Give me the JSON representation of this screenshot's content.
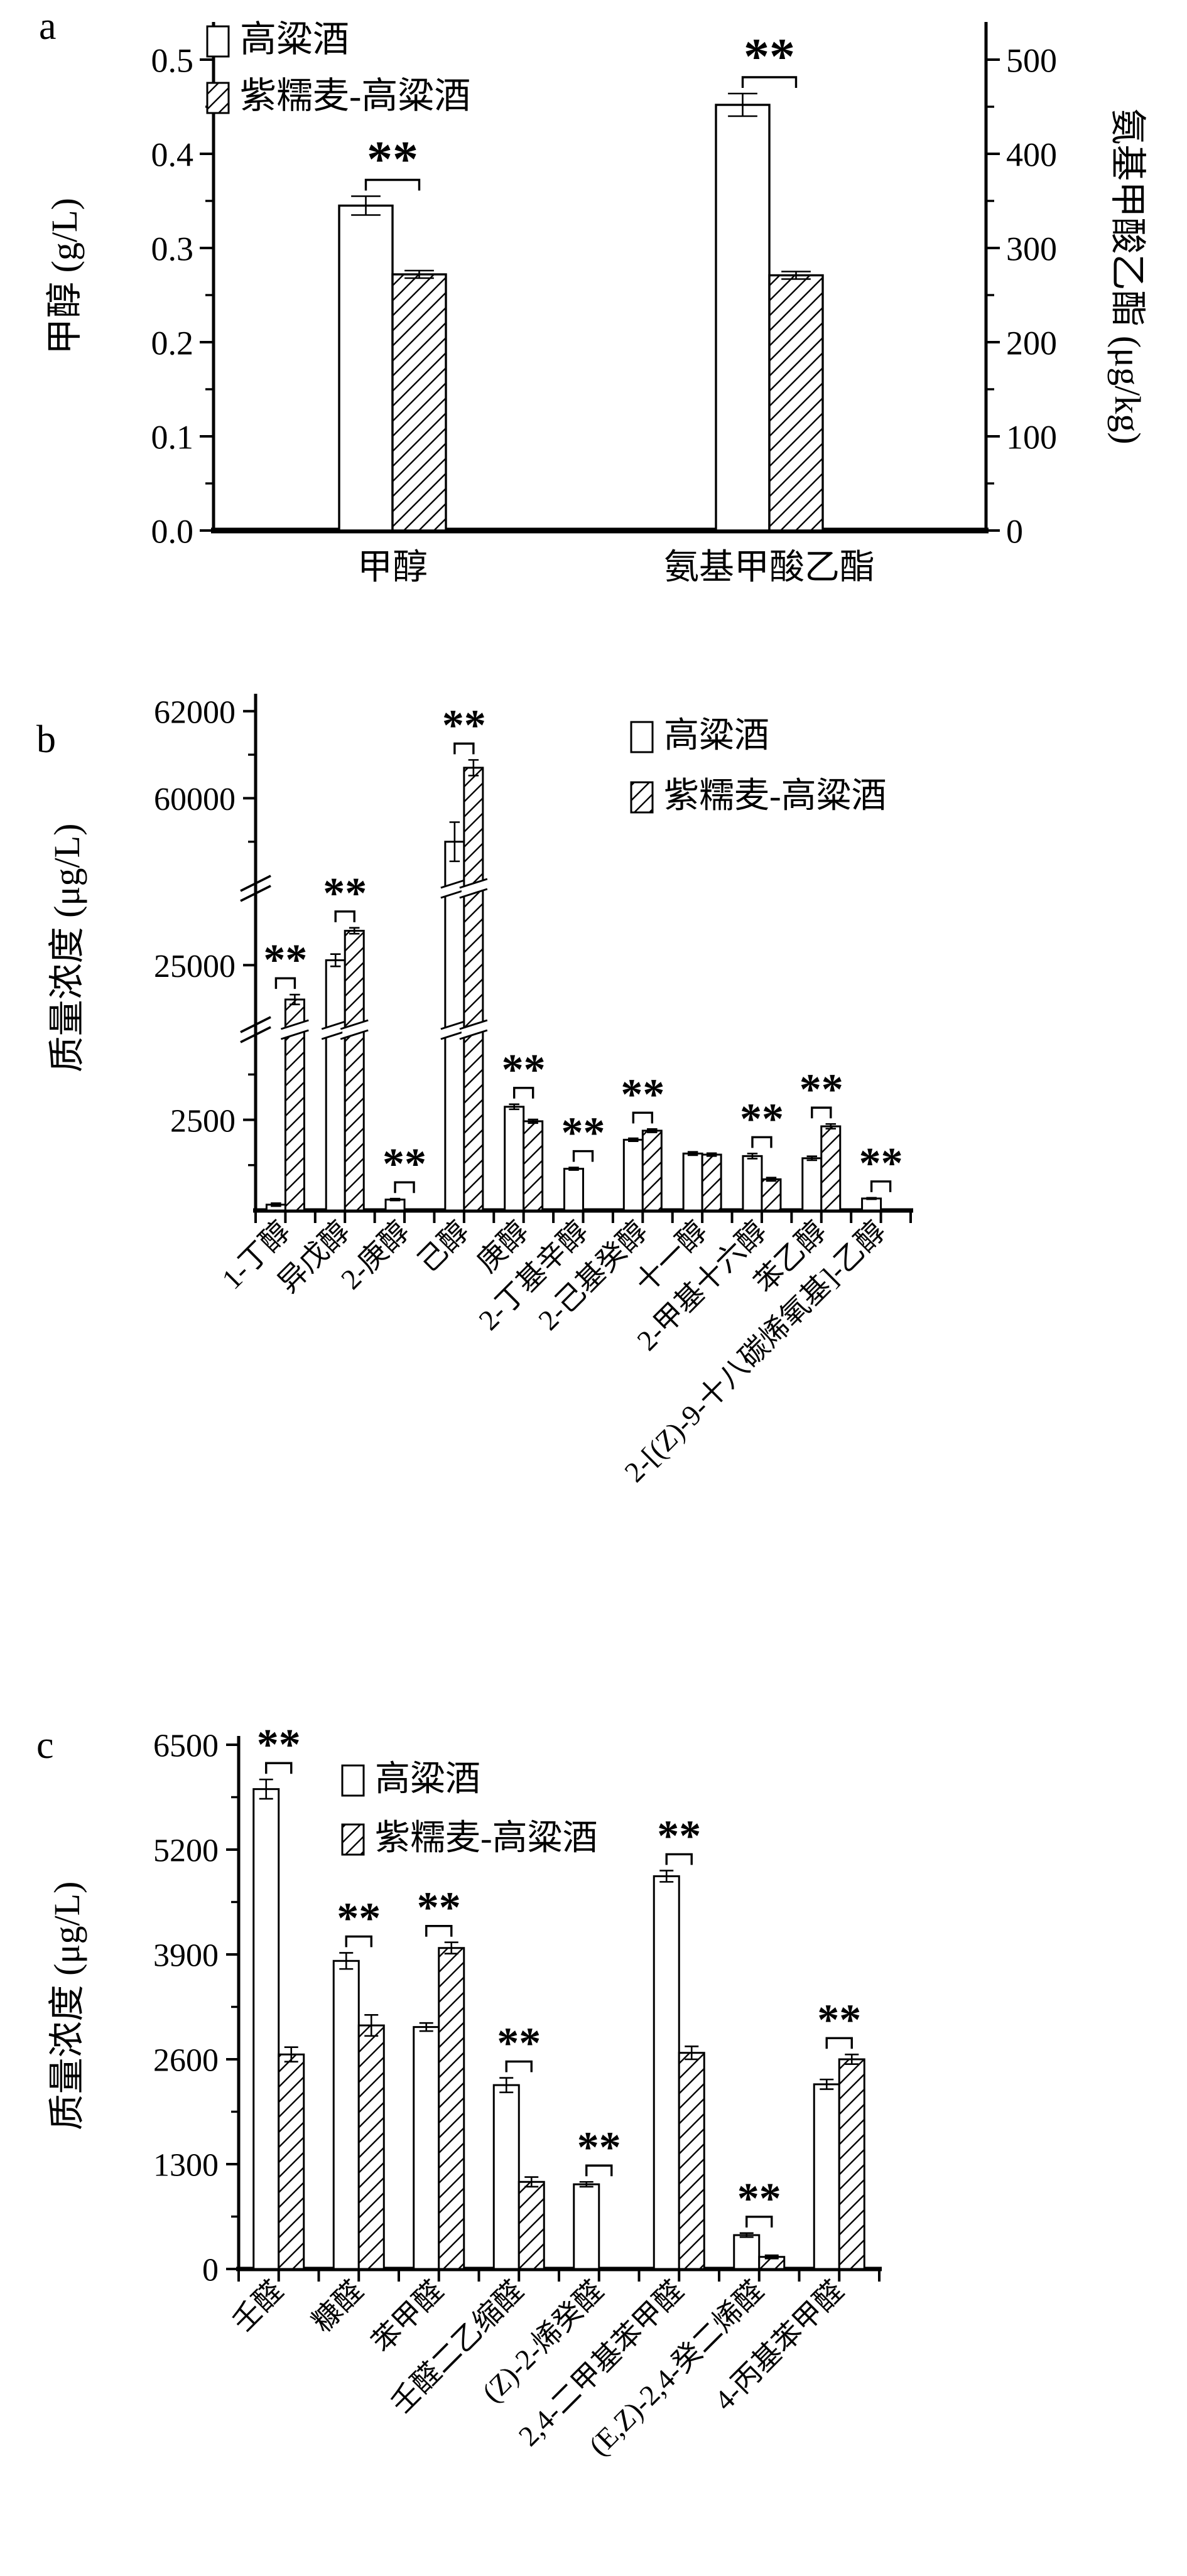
{
  "figure_type": "three-panel bar figure comparing two liquors",
  "legend_series": [
    "高粱酒",
    "紫糯麦-高粱酒"
  ],
  "chart_data": [
    {
      "panel": "a",
      "type": "bar",
      "title": "",
      "categories": [
        "甲醇",
        "氨基甲酸乙酯"
      ],
      "category_axis": [
        "left",
        "right"
      ],
      "series": [
        {
          "name": "高粱酒",
          "style": "open",
          "values": [
            0.345,
            452
          ],
          "errors": [
            0.01,
            12
          ]
        },
        {
          "name": "紫糯麦-高粱酒",
          "style": "hatched",
          "values": [
            0.272,
            271
          ],
          "errors": [
            0.004,
            4
          ]
        }
      ],
      "significance": [
        "**",
        "**"
      ],
      "ylabel_left": "甲醇 (g/L)",
      "ylabel_right": "氨基甲酸乙酯 (μg/kg)",
      "ylim_left": [
        0,
        0.5
      ],
      "ylim_right": [
        0,
        500
      ],
      "ytick_values_left": [
        0,
        0.1,
        0.2,
        0.3,
        0.4,
        0.5
      ],
      "ytick_labels_left": [
        "0.0",
        "0.1",
        "0.2",
        "0.3",
        "0.4",
        "0.5"
      ],
      "minor_ticks_left": [
        0.05,
        0.15,
        0.25,
        0.35,
        0.45
      ],
      "ytick_values_right": [
        0,
        100,
        200,
        300,
        400,
        500
      ],
      "ytick_labels_right": [
        "0",
        "100",
        "200",
        "300",
        "400",
        "500"
      ],
      "minor_ticks_right": [
        50,
        150,
        250,
        350,
        450
      ],
      "grid": false,
      "legend_position": "top-left-inside"
    },
    {
      "panel": "b",
      "type": "bar",
      "title": "",
      "categories": [
        "1-丁醇",
        "异戊醇",
        "2-庚醇",
        "己醇",
        "庚醇",
        "2-丁基辛醇",
        "2-己基癸醇",
        "十一醇",
        "2-甲基十六醇",
        "苯乙醇",
        "2-[(Z)-9-十八碳烯氧基]-乙醇"
      ],
      "series": [
        {
          "name": "高粱酒",
          "style": "open",
          "values": [
            160,
            25200,
            300,
            59000,
            2860,
            1150,
            1950,
            1570,
            1500,
            1440,
            330
          ],
          "errors": [
            40,
            250,
            25,
            450,
            70,
            35,
            40,
            45,
            70,
            55,
            20
          ]
        },
        {
          "name": "紫糯麦-高粱酒",
          "style": "hatched",
          "values": [
            23600,
            26400,
            0,
            60700,
            2460,
            0,
            2200,
            1540,
            860,
            2320,
            0
          ],
          "errors": [
            200,
            120,
            0,
            180,
            50,
            0,
            45,
            40,
            45,
            65,
            0
          ]
        }
      ],
      "significance": [
        "**",
        "**",
        "**",
        "**",
        "**",
        "**",
        "**",
        null,
        "**",
        "**",
        "**"
      ],
      "ylabel": "质量浓度 (μg/L)",
      "axis_broken": true,
      "segments": [
        {
          "range": [
            0,
            4900
          ],
          "ticks": [
            2500
          ],
          "tick_labels": [
            "2500"
          ],
          "minor": [
            1250,
            3750
          ]
        },
        {
          "range": [
            22500,
            28000
          ],
          "ticks": [
            25000
          ],
          "tick_labels": [
            "25000"
          ],
          "minor": []
        },
        {
          "range": [
            58000,
            62400
          ],
          "ticks": [
            60000,
            62000
          ],
          "tick_labels": [
            "60000",
            "62000"
          ],
          "minor": [
            59000,
            61000
          ]
        }
      ],
      "grid": false,
      "legend_position": "top-right-inside"
    },
    {
      "panel": "c",
      "type": "bar",
      "title": "",
      "categories": [
        "壬醛",
        "糠醛",
        "苯甲醛",
        "壬醛二乙缩醛",
        "(Z)-2-烯癸醛",
        "2,4-二甲基苯甲醛",
        "(E,Z)-2,4-癸二烯醛",
        "4-丙基苯甲醛"
      ],
      "series": [
        {
          "name": "高粱酒",
          "style": "open",
          "values": [
            5950,
            3820,
            3000,
            2280,
            1050,
            4870,
            420,
            2290
          ],
          "errors": [
            120,
            100,
            50,
            90,
            30,
            70,
            25,
            60
          ]
        },
        {
          "name": "紫糯麦-高粱酒",
          "style": "hatched",
          "values": [
            2660,
            3020,
            3980,
            1080,
            0,
            2680,
            150,
            2600
          ],
          "errors": [
            90,
            130,
            70,
            60,
            0,
            80,
            20,
            60
          ]
        }
      ],
      "significance": [
        "**",
        "**",
        "**",
        "**",
        "**",
        "**",
        "**",
        "**"
      ],
      "ylabel": "质量浓度 (μg/L)",
      "ylim": [
        0,
        6500
      ],
      "ytick_values": [
        0,
        1300,
        2600,
        3900,
        5200,
        6500
      ],
      "ytick_labels": [
        "0",
        "1300",
        "2600",
        "3900",
        "5200",
        "6500"
      ],
      "minor_ticks": [
        650,
        1950,
        3250,
        4550,
        5850
      ],
      "grid": false,
      "legend_position": "top-left-inside"
    }
  ]
}
